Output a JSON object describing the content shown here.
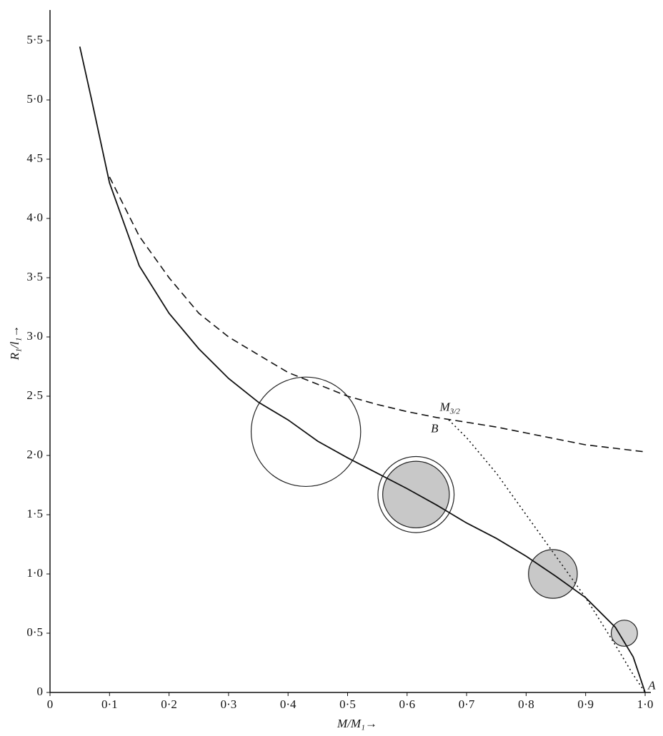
{
  "chart_data": {
    "type": "line",
    "xlabel": "M/M₁→",
    "ylabel": "R₁/l₁→",
    "xlim": [
      0,
      1.0
    ],
    "ylim": [
      0,
      5.5
    ],
    "xticks": [
      0,
      {
        "value": 0.1,
        "label": "0·1"
      },
      {
        "value": 0.2,
        "label": "0·2"
      },
      {
        "value": 0.3,
        "label": "0·3"
      },
      {
        "value": 0.4,
        "label": "0·4"
      },
      {
        "value": 0.5,
        "label": "0·5"
      },
      {
        "value": 0.6,
        "label": "0·6"
      },
      {
        "value": 0.7,
        "label": "0·7"
      },
      {
        "value": 0.8,
        "label": "0·8"
      },
      {
        "value": 0.9,
        "label": "0·9"
      },
      {
        "value": 1.0,
        "label": "1·0"
      }
    ],
    "yticks": [
      0,
      {
        "value": 0.5,
        "label": "0·5"
      },
      {
        "value": 1.0,
        "label": "1·0"
      },
      {
        "value": 1.5,
        "label": "1·5"
      },
      {
        "value": 2.0,
        "label": "2·0"
      },
      {
        "value": 2.5,
        "label": "2·5"
      },
      {
        "value": 3.0,
        "label": "3·0"
      },
      {
        "value": 3.5,
        "label": "3·5"
      },
      {
        "value": 4.0,
        "label": "4·0"
      },
      {
        "value": 4.5,
        "label": "4·5"
      },
      {
        "value": 5.0,
        "label": "5·0"
      },
      {
        "value": 5.5,
        "label": "5·5"
      }
    ],
    "series": [
      {
        "style": "solid",
        "color": "#111111",
        "x": [
          0.05,
          0.07,
          0.1,
          0.15,
          0.2,
          0.25,
          0.3,
          0.35,
          0.4,
          0.45,
          0.5,
          0.55,
          0.6,
          0.65,
          0.7,
          0.75,
          0.8,
          0.85,
          0.9,
          0.95,
          0.98,
          1.0
        ],
        "values": [
          5.45,
          5.0,
          4.3,
          3.6,
          3.2,
          2.9,
          2.65,
          2.45,
          2.3,
          2.12,
          1.98,
          1.85,
          1.72,
          1.58,
          1.43,
          1.3,
          1.15,
          0.98,
          0.8,
          0.55,
          0.3,
          0
        ]
      },
      {
        "style": "dashed",
        "color": "#111111",
        "x": [
          0.1,
          0.15,
          0.2,
          0.25,
          0.3,
          0.35,
          0.4,
          0.45,
          0.5,
          0.55,
          0.6,
          0.65,
          0.7,
          0.75,
          0.8,
          0.85,
          0.9,
          0.95,
          1.0
        ],
        "values": [
          4.35,
          3.85,
          3.5,
          3.2,
          3.0,
          2.85,
          2.7,
          2.6,
          2.5,
          2.43,
          2.37,
          2.32,
          2.28,
          2.24,
          2.19,
          2.14,
          2.09,
          2.06,
          2.03
        ]
      },
      {
        "style": "dotted",
        "color": "#111111",
        "x": [
          0.67,
          0.7,
          0.75,
          0.8,
          0.85,
          0.9,
          0.95,
          0.98,
          1.0
        ],
        "values": [
          2.3,
          2.15,
          1.85,
          1.5,
          1.15,
          0.8,
          0.4,
          0.15,
          0
        ]
      }
    ],
    "circles": [
      {
        "x": 0.43,
        "y": 2.2,
        "r": 0.092,
        "fill": "none"
      },
      {
        "x": 0.615,
        "y": 1.67,
        "r": 0.064,
        "fill": "none"
      },
      {
        "x": 0.615,
        "y": 1.67,
        "r": 0.056,
        "fill": "#c8c8c8"
      },
      {
        "x": 0.845,
        "y": 1.0,
        "r": 0.041,
        "fill": "#c8c8c8"
      },
      {
        "x": 0.965,
        "y": 0.5,
        "r": 0.022,
        "fill": "#d0d0d0"
      }
    ],
    "m_label": {
      "text": "M",
      "sub": "3/2"
    },
    "annotations": [
      "B",
      "A"
    ]
  }
}
